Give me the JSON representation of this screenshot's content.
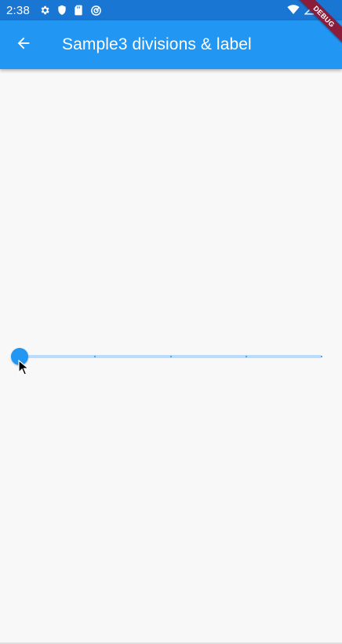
{
  "status_bar": {
    "time": "2:38",
    "icons_left": [
      "gear-icon",
      "shield-icon",
      "sd-card-icon",
      "sync-icon"
    ],
    "icons_right": [
      "wifi-icon",
      "signal-icon",
      "battery-icon"
    ],
    "color": "#1976d2"
  },
  "debug_banner": {
    "label": "DEBUG"
  },
  "app_bar": {
    "title": "Sample3 divisions & label",
    "back_icon": "arrow-back-icon",
    "color": "#2196f3"
  },
  "slider": {
    "value": 0,
    "min": 0,
    "max": 1,
    "divisions": 4,
    "active_color": "#2196f3",
    "inactive_color": "#b9dcfa"
  }
}
